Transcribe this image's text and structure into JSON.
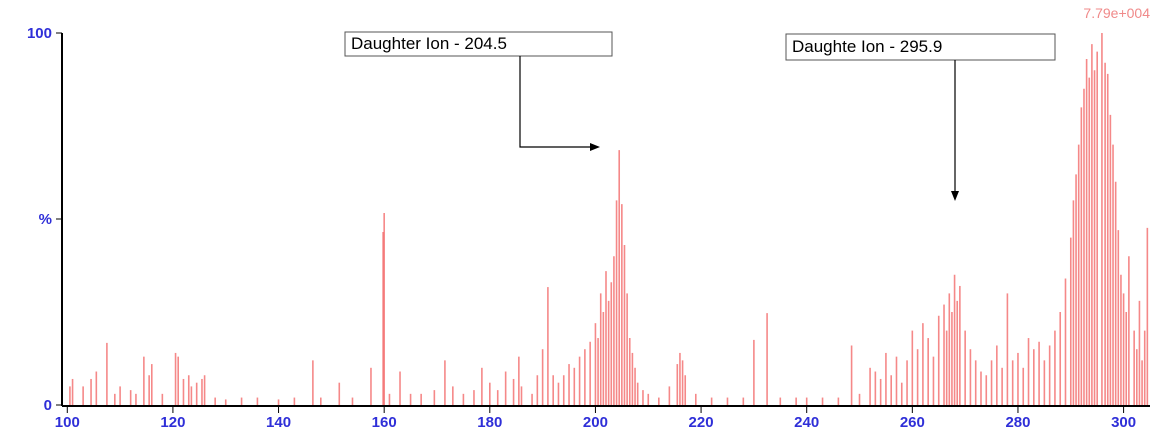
{
  "chart_data": {
    "type": "stick",
    "color": "#f26a6a",
    "intensity_label": "7.79e+004",
    "annotations": [
      "Daughter Ion - 204.5",
      "Daughte Ion - 295.9"
    ],
    "xlim": [
      99,
      305
    ],
    "ylim": [
      0,
      100
    ],
    "xticks": [
      100,
      120,
      140,
      160,
      180,
      200,
      220,
      240,
      260,
      280,
      300
    ],
    "yticks": [
      0,
      {
        "value": 50,
        "label": "%"
      },
      100
    ],
    "x": [
      100.5,
      101,
      103,
      104.5,
      105.5,
      107.5,
      109,
      110,
      112,
      113,
      114.5,
      115.5,
      116,
      118,
      120.5,
      121,
      122,
      123,
      123.5,
      124.5,
      125.5,
      126,
      128,
      130,
      133,
      136,
      140,
      143,
      146.5,
      148,
      151.5,
      154,
      157.5,
      159.8,
      160,
      161,
      163,
      165,
      167,
      169.5,
      171.5,
      173,
      175,
      177,
      178.5,
      180,
      181.5,
      183,
      184.5,
      185.5,
      186,
      188,
      189,
      190,
      191,
      192,
      193,
      194,
      195,
      196,
      197,
      198,
      199,
      200,
      200.5,
      201,
      201.5,
      202,
      202.5,
      203,
      203.5,
      204,
      204.5,
      205,
      205.5,
      206,
      206.5,
      207,
      207.5,
      208,
      209,
      210,
      212,
      214,
      215.5,
      216,
      216.5,
      217,
      219,
      222,
      225,
      228,
      230,
      232.5,
      235,
      238,
      240,
      243,
      246,
      248.5,
      250,
      252,
      253,
      254,
      255,
      256,
      257,
      258,
      259,
      260,
      261,
      262,
      263,
      264,
      265,
      266,
      266.5,
      267,
      267.5,
      268,
      268.5,
      269,
      270,
      271,
      272,
      273,
      274,
      275,
      276,
      277,
      278,
      279,
      280,
      281,
      282,
      283,
      284,
      285,
      286,
      287,
      288,
      289,
      290,
      290.5,
      291,
      291.5,
      292,
      292.5,
      293,
      293.5,
      294,
      294.5,
      295,
      295.9,
      296.5,
      297,
      297.5,
      298,
      298.5,
      299,
      299.5,
      300,
      300.5,
      301,
      302,
      302.5,
      303,
      303.5,
      304,
      304.5
    ],
    "values": [
      5,
      7,
      5,
      7,
      9,
      16.7,
      3,
      5,
      4,
      3,
      13,
      8,
      11,
      3,
      14,
      13,
      7,
      8,
      5,
      6,
      7,
      8,
      2,
      1.5,
      2,
      2,
      1.5,
      2,
      12,
      2,
      6,
      2,
      10,
      46.5,
      51.6,
      3,
      9,
      3,
      3,
      4,
      12,
      5,
      3,
      4,
      10,
      6,
      4,
      9,
      7,
      13,
      5,
      3,
      8,
      15,
      31.7,
      8,
      6,
      8,
      11,
      10,
      13,
      15,
      17,
      22,
      18,
      30,
      25,
      36,
      28,
      33,
      40,
      55,
      68.5,
      54,
      43,
      30,
      18,
      14,
      10,
      6,
      4,
      3,
      2,
      5,
      11,
      14,
      12,
      8,
      3,
      2,
      2,
      2,
      17.5,
      24.7,
      2,
      2,
      2,
      2,
      2,
      16,
      3,
      10,
      9,
      7,
      14,
      8,
      13,
      6,
      12,
      20,
      15,
      22,
      18,
      13,
      24,
      27,
      20,
      30,
      25,
      35,
      28,
      32,
      20,
      15,
      12,
      9,
      8,
      12,
      16,
      10,
      30,
      12,
      14,
      10,
      18,
      15,
      17,
      12,
      16,
      20,
      25,
      34,
      45,
      55,
      62,
      70,
      80,
      85,
      93,
      88,
      97,
      90,
      95,
      100,
      92,
      89,
      78,
      70,
      60,
      47,
      35,
      30,
      25,
      40,
      20,
      15,
      28,
      12,
      20,
      47.6
    ]
  }
}
